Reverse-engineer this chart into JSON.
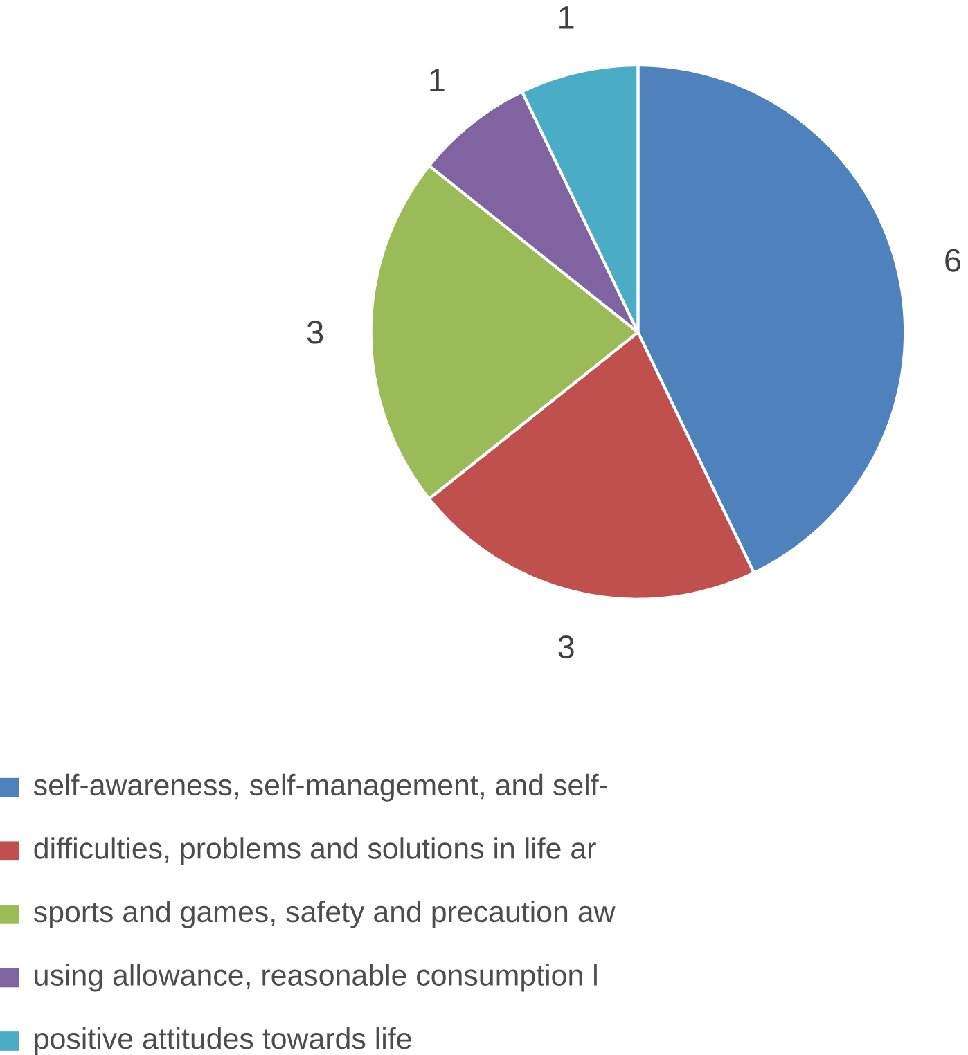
{
  "chart_data": {
    "type": "pie",
    "categories": [
      "self-awareness, self-management, and self-",
      "difficulties, problems and solutions in life ar",
      "sports and games, safety and precaution aw",
      "using allowance,  reasonable consumption l",
      "positive attitudes towards life"
    ],
    "values": [
      6,
      3,
      3,
      1,
      1
    ],
    "colors": [
      "#4f81bd",
      "#c0504d",
      "#9bbb59",
      "#8064a2",
      "#4bacc6"
    ],
    "data_labels": true,
    "legend": "bottom"
  }
}
